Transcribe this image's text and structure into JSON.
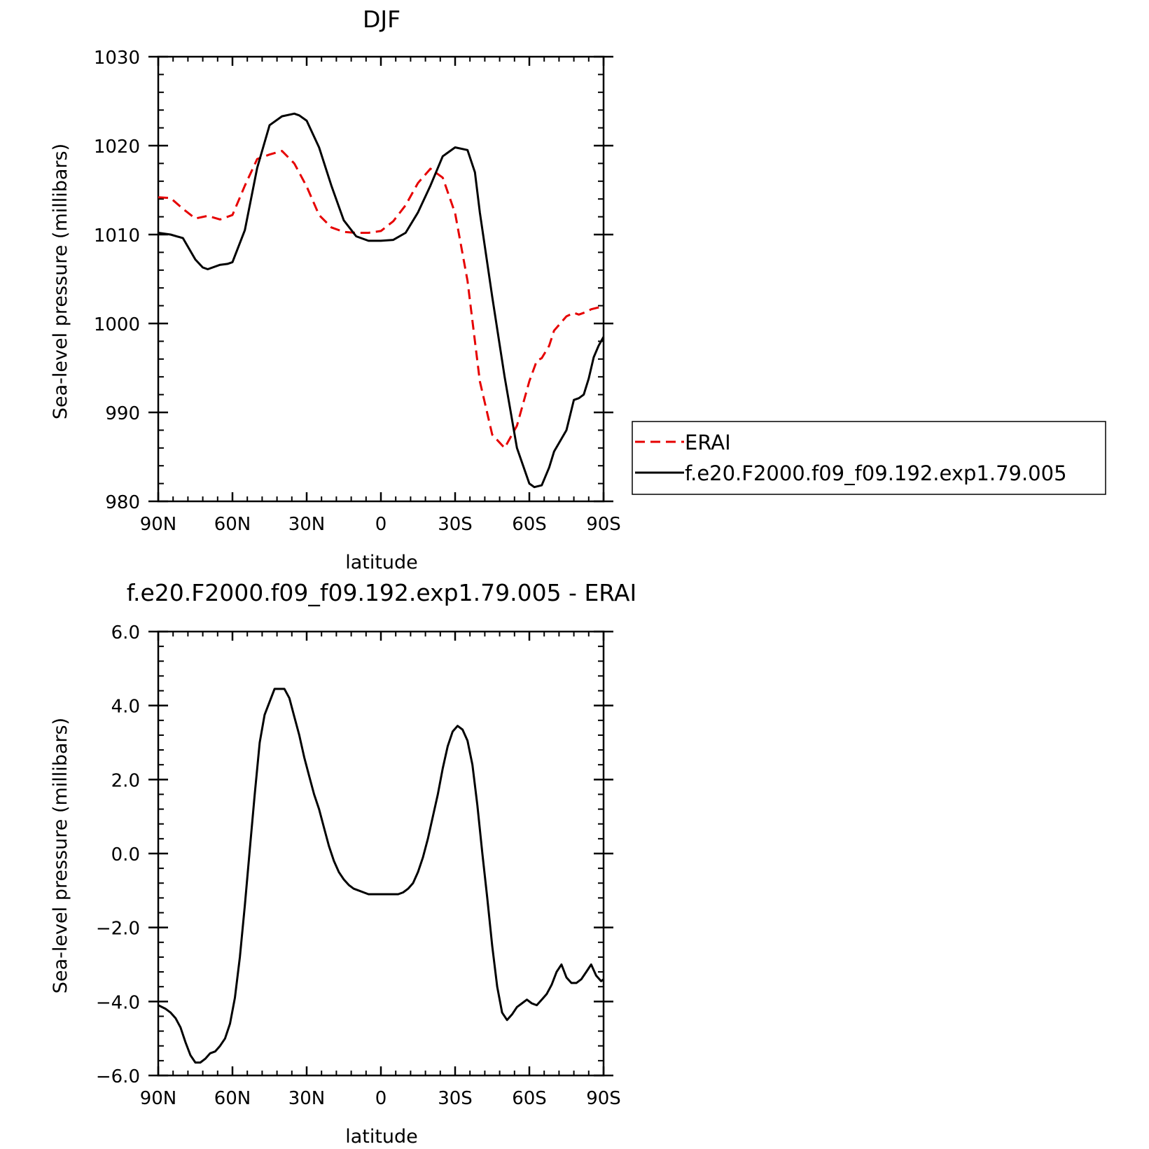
{
  "chart_data": [
    {
      "type": "line",
      "title": "DJF",
      "xlabel": "latitude",
      "ylabel": "Sea-level pressure (millibars)",
      "xlim": [
        90,
        -90
      ],
      "ylim": [
        980,
        1030
      ],
      "x_ticks": [
        {
          "value": 90,
          "label": "90N"
        },
        {
          "value": 60,
          "label": "60N"
        },
        {
          "value": 30,
          "label": "30N"
        },
        {
          "value": 0,
          "label": "0"
        },
        {
          "value": -30,
          "label": "30S"
        },
        {
          "value": -60,
          "label": "60S"
        },
        {
          "value": -90,
          "label": "90S"
        }
      ],
      "y_ticks": [
        {
          "value": 980,
          "label": "980"
        },
        {
          "value": 990,
          "label": "990"
        },
        {
          "value": 1000,
          "label": "1000"
        },
        {
          "value": 1010,
          "label": "1010"
        },
        {
          "value": 1020,
          "label": "1020"
        },
        {
          "value": 1030,
          "label": "1030"
        }
      ],
      "legend": "right",
      "series": [
        {
          "name": "ERAI",
          "color": "#e60000",
          "dash": "dashed",
          "x": [
            90,
            85,
            80,
            75,
            70,
            65,
            60,
            55,
            50,
            45,
            40,
            35,
            30,
            25,
            20,
            15,
            10,
            5,
            0,
            -5,
            -10,
            -15,
            -20,
            -25,
            -30,
            -35,
            -38,
            -40,
            -45,
            -50,
            -55,
            -60,
            -63,
            -65,
            -68,
            -70,
            -75,
            -78,
            -80,
            -83,
            -85,
            -88,
            -90
          ],
          "y": [
            1014.2,
            1014.1,
            1012.9,
            1011.8,
            1012.1,
            1011.7,
            1012.2,
            1015.5,
            1018.5,
            1019.0,
            1019.4,
            1018.0,
            1015.4,
            1012.2,
            1010.8,
            1010.3,
            1010.2,
            1010.2,
            1010.4,
            1011.5,
            1013.3,
            1015.8,
            1017.4,
            1016.4,
            1012.4,
            1004.8,
            998.0,
            993.5,
            987.5,
            986.0,
            988.5,
            993.5,
            995.8,
            996.1,
            997.5,
            999.2,
            1000.8,
            1001.2,
            1001.0,
            1001.3,
            1001.6,
            1001.8,
            1002.0
          ]
        },
        {
          "name": "f.e20.F2000.f09_f09.192.exp1.79.005",
          "color": "#000000",
          "dash": "solid",
          "x": [
            90,
            85,
            80,
            75,
            72,
            70,
            65,
            62,
            60,
            55,
            50,
            45,
            40,
            35,
            33,
            30,
            25,
            20,
            15,
            10,
            5,
            0,
            -5,
            -10,
            -15,
            -20,
            -25,
            -30,
            -35,
            -38,
            -40,
            -45,
            -50,
            -55,
            -60,
            -62,
            -65,
            -68,
            -70,
            -75,
            -78,
            -80,
            -82,
            -84,
            -86,
            -88,
            -90
          ],
          "y": [
            1010.2,
            1010.0,
            1009.6,
            1007.2,
            1006.3,
            1006.1,
            1006.6,
            1006.7,
            1006.9,
            1010.5,
            1017.5,
            1022.3,
            1023.3,
            1023.6,
            1023.4,
            1022.8,
            1019.8,
            1015.5,
            1011.6,
            1009.8,
            1009.3,
            1009.3,
            1009.4,
            1010.2,
            1012.5,
            1015.5,
            1018.8,
            1019.8,
            1019.5,
            1017.0,
            1012.5,
            1003.0,
            994.0,
            986.0,
            982.0,
            981.6,
            981.8,
            983.8,
            985.6,
            988.0,
            991.4,
            991.6,
            992.0,
            993.8,
            996.2,
            997.5,
            998.5
          ]
        }
      ]
    },
    {
      "type": "line",
      "title": "f.e20.F2000.f09_f09.192.exp1.79.005 - ERAI",
      "xlabel": "latitude",
      "ylabel": "Sea-level pressure (millibars)",
      "xlim": [
        90,
        -90
      ],
      "ylim": [
        -6,
        6
      ],
      "x_ticks": [
        {
          "value": 90,
          "label": "90N"
        },
        {
          "value": 60,
          "label": "60N"
        },
        {
          "value": 30,
          "label": "30N"
        },
        {
          "value": 0,
          "label": "0"
        },
        {
          "value": -30,
          "label": "30S"
        },
        {
          "value": -60,
          "label": "60S"
        },
        {
          "value": -90,
          "label": "90S"
        }
      ],
      "y_ticks": [
        {
          "value": -6,
          "label": "−6.0"
        },
        {
          "value": -4,
          "label": "−4.0"
        },
        {
          "value": -2,
          "label": "−2.0"
        },
        {
          "value": 0,
          "label": "0.0"
        },
        {
          "value": 2,
          "label": "2.0"
        },
        {
          "value": 4,
          "label": "4.0"
        },
        {
          "value": 6,
          "label": "6.0"
        }
      ],
      "series": [
        {
          "color": "#000000",
          "dash": "solid",
          "x": [
            90,
            87,
            85,
            83,
            81,
            79,
            77,
            75,
            73,
            71,
            69,
            67,
            65,
            63,
            61,
            59,
            57,
            55,
            53,
            51,
            49,
            47,
            45,
            43,
            41,
            39,
            37,
            35,
            33,
            31,
            29,
            27,
            25,
            23,
            21,
            19,
            17,
            15,
            13,
            11,
            9,
            7,
            5,
            3,
            1,
            -1,
            -3,
            -5,
            -7,
            -9,
            -11,
            -13,
            -15,
            -17,
            -19,
            -21,
            -23,
            -25,
            -27,
            -29,
            -31,
            -33,
            -35,
            -37,
            -39,
            -41,
            -43,
            -45,
            -47,
            -49,
            -51,
            -53,
            -55,
            -57,
            -59,
            -61,
            -63,
            -65,
            -67,
            -69,
            -71,
            -73,
            -75,
            -77,
            -79,
            -81,
            -83,
            -85,
            -87,
            -89,
            -90
          ],
          "y": [
            -4.1,
            -4.2,
            -4.3,
            -4.45,
            -4.7,
            -5.1,
            -5.45,
            -5.65,
            -5.65,
            -5.55,
            -5.4,
            -5.35,
            -5.2,
            -5.0,
            -4.6,
            -3.9,
            -2.8,
            -1.4,
            0.1,
            1.6,
            3.0,
            3.75,
            4.1,
            4.45,
            4.45,
            4.45,
            4.2,
            3.7,
            3.2,
            2.6,
            2.1,
            1.6,
            1.2,
            0.7,
            0.2,
            -0.2,
            -0.5,
            -0.7,
            -0.85,
            -0.95,
            -1.0,
            -1.05,
            -1.1,
            -1.1,
            -1.1,
            -1.1,
            -1.1,
            -1.1,
            -1.1,
            -1.05,
            -0.95,
            -0.8,
            -0.5,
            -0.1,
            0.4,
            1.0,
            1.6,
            2.3,
            2.9,
            3.3,
            3.45,
            3.35,
            3.05,
            2.4,
            1.3,
            0.0,
            -1.2,
            -2.5,
            -3.6,
            -4.3,
            -4.5,
            -4.35,
            -4.15,
            -4.05,
            -3.95,
            -4.05,
            -4.1,
            -3.95,
            -3.8,
            -3.55,
            -3.2,
            -3.0,
            -3.35,
            -3.5,
            -3.5,
            -3.4,
            -3.2,
            -3.0,
            -3.3,
            -3.45,
            -3.4
          ]
        }
      ]
    }
  ]
}
